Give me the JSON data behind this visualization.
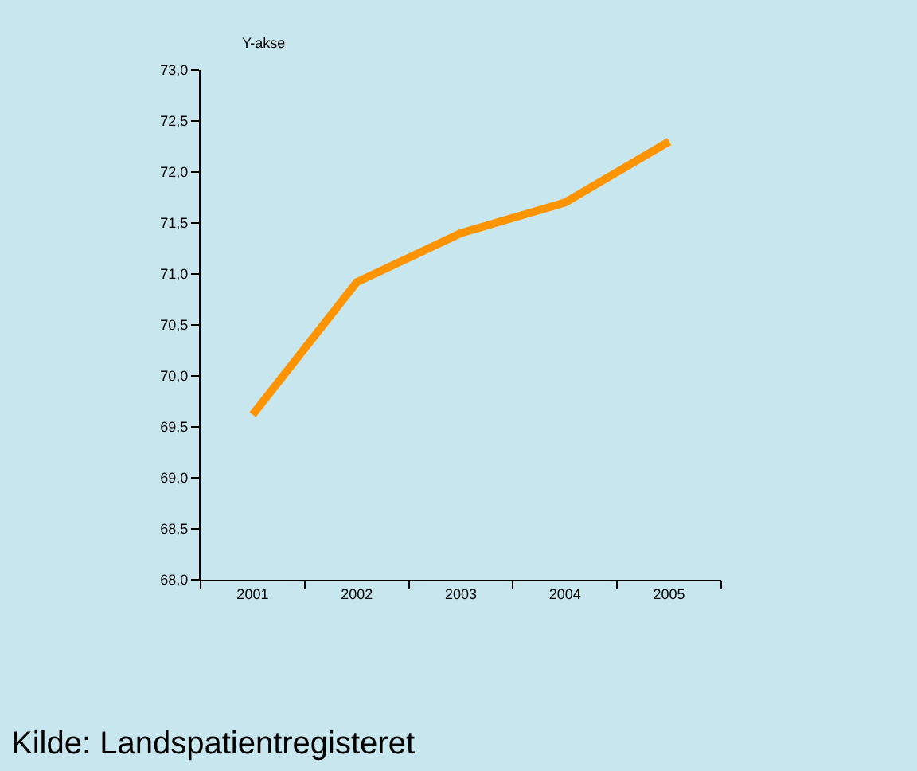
{
  "chart_data": {
    "type": "line",
    "ylabel": "Y-akse",
    "categories": [
      "2001",
      "2002",
      "2003",
      "2004",
      "2005"
    ],
    "series": [
      {
        "color": "#ff9400",
        "values": [
          69.62,
          70.92,
          71.4,
          71.7,
          72.3
        ]
      }
    ],
    "ylim": [
      68,
      73
    ],
    "yticks": [
      {
        "value": 68,
        "label": "68,0"
      },
      {
        "value": 68.5,
        "label": "68,5"
      },
      {
        "value": 69,
        "label": "69,0"
      },
      {
        "value": 69.5,
        "label": "69,5"
      },
      {
        "value": 70,
        "label": "70,0"
      },
      {
        "value": 70.5,
        "label": "70,5"
      },
      {
        "value": 71,
        "label": "71,0"
      },
      {
        "value": 71.5,
        "label": "71,5"
      },
      {
        "value": 72,
        "label": "72,0"
      },
      {
        "value": 72.5,
        "label": "72,5"
      },
      {
        "value": 73,
        "label": "73,0"
      }
    ],
    "grid": false,
    "marker": "none",
    "line_style": "solid",
    "annotations": [
      "Kilde: Landspatientregisteret"
    ]
  }
}
